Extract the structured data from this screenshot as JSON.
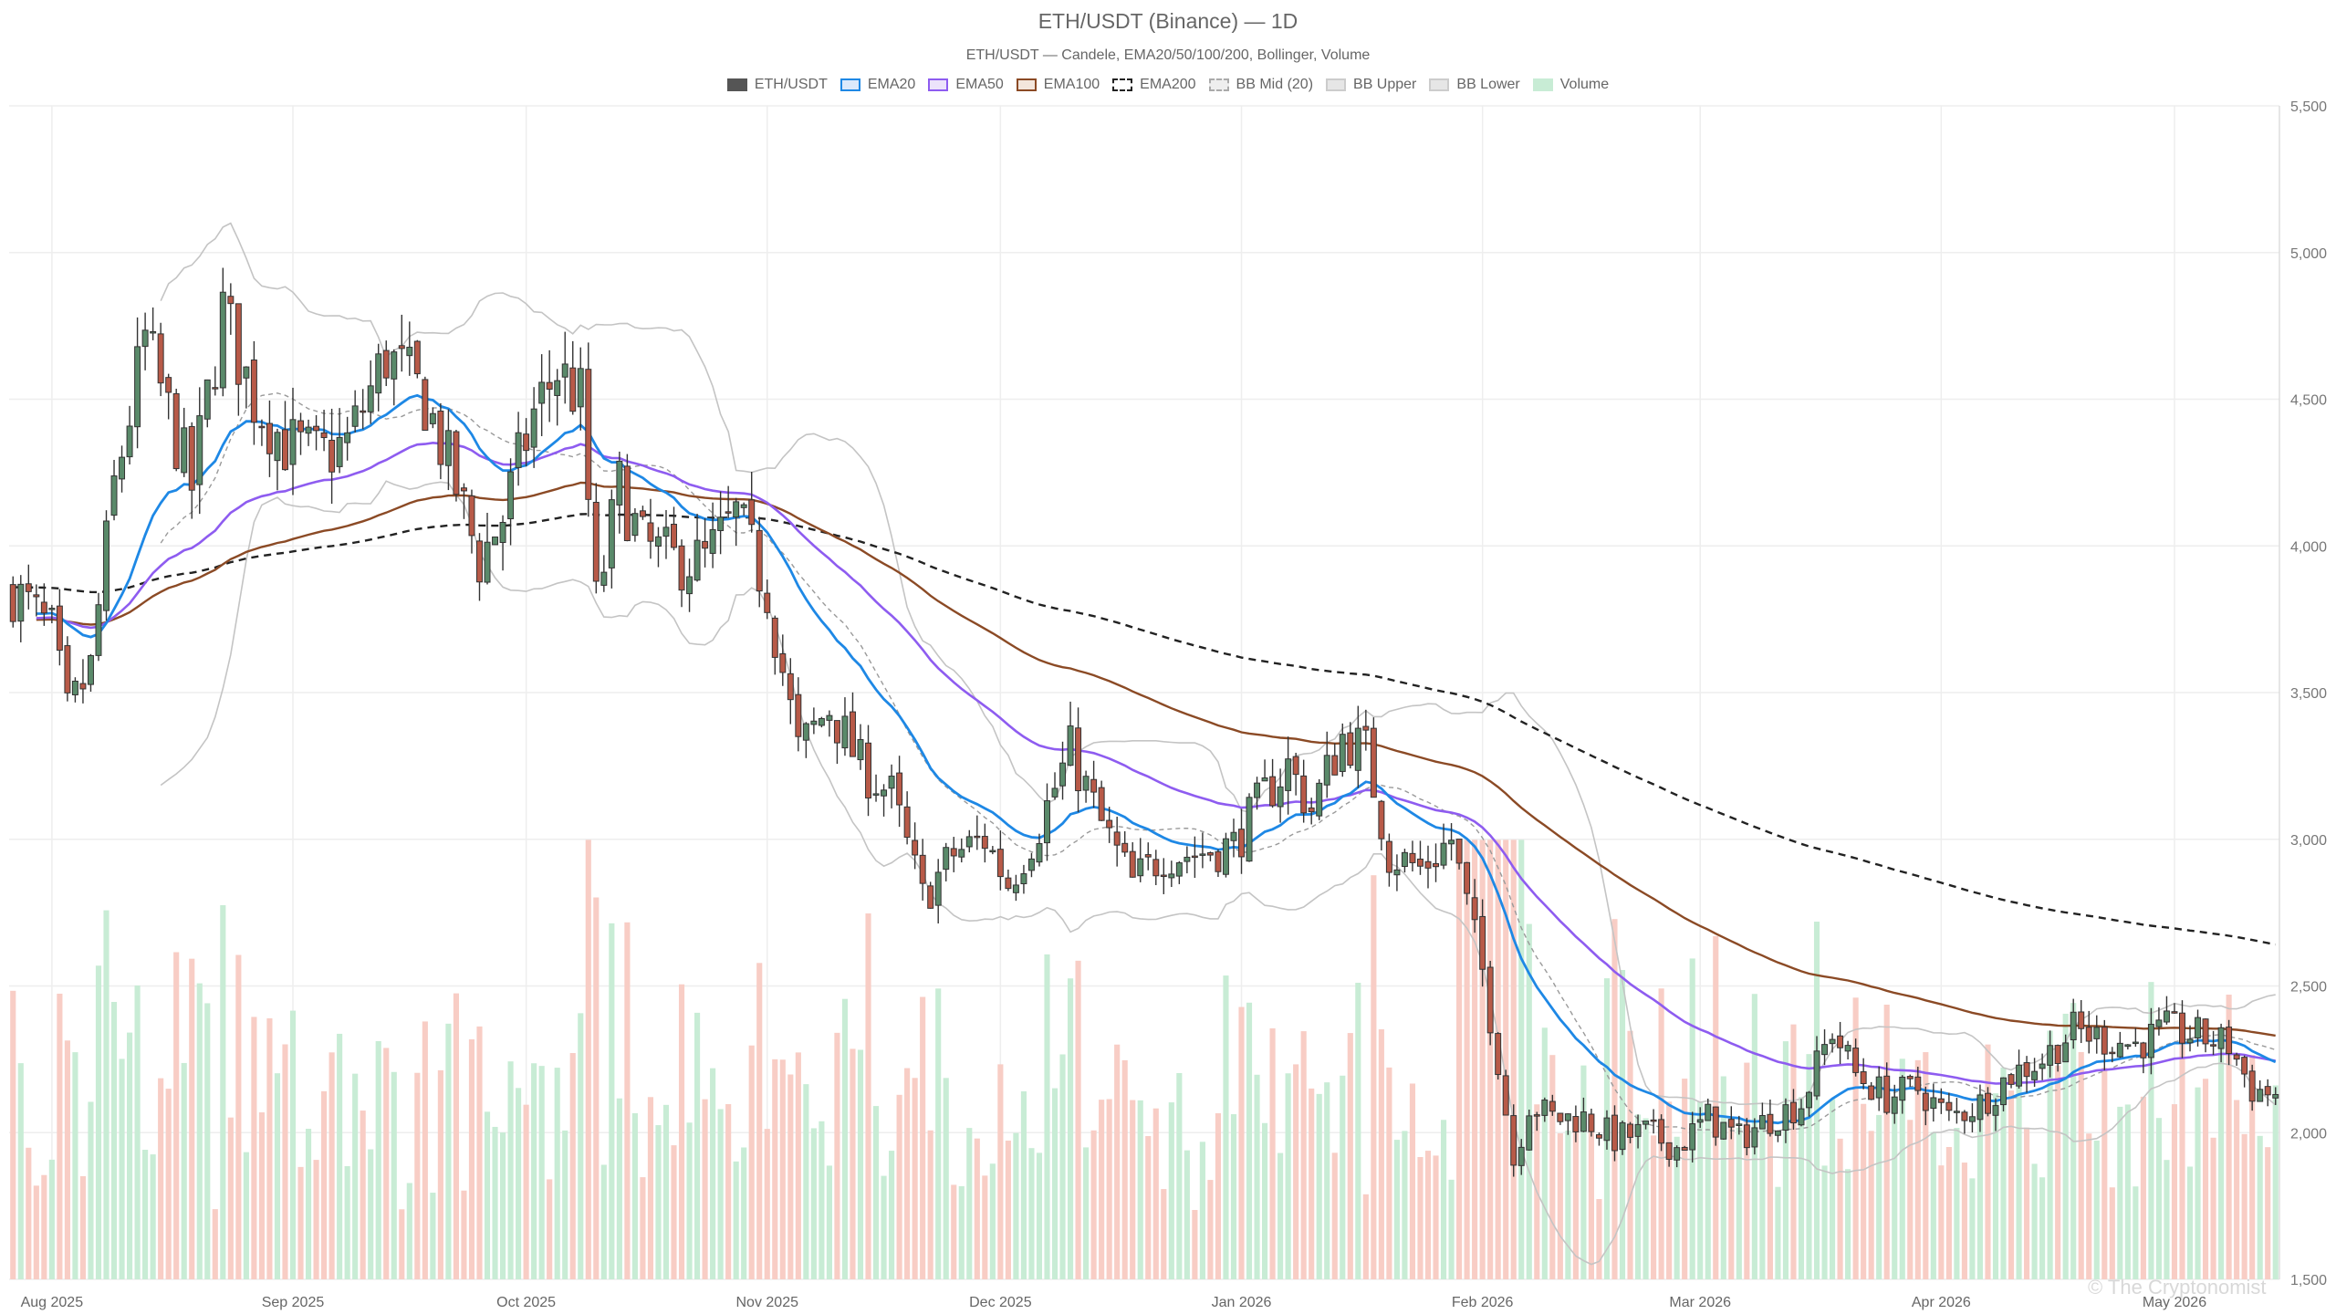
{
  "chart_data": {
    "type": "candlestick",
    "title": "ETH/USDT (Binance) — 1D",
    "subtitle": "ETH/USDT — Candele, EMA20/50/100/200, Bollinger, Volume",
    "legend": [
      {
        "name": "ETH/USDT",
        "fill": "#555555",
        "stroke": "#555555",
        "style": "solid"
      },
      {
        "name": "EMA20",
        "fill": "#dbe9fb",
        "stroke": "#1e88e5",
        "style": "solid"
      },
      {
        "name": "EMA50",
        "fill": "#ece3fb",
        "stroke": "#8e5cf0",
        "style": "solid"
      },
      {
        "name": "EMA100",
        "fill": "#f3e6dc",
        "stroke": "#8b4a25",
        "style": "solid"
      },
      {
        "name": "EMA200",
        "fill": "#ffffff",
        "stroke": "#222222",
        "style": "dashed"
      },
      {
        "name": "BB Mid (20)",
        "fill": "#eeeeee",
        "stroke": "#aaaaaa",
        "style": "dashed"
      },
      {
        "name": "BB Upper",
        "fill": "#e6e6e6",
        "stroke": "#cccccc",
        "style": "solid"
      },
      {
        "name": "BB Lower",
        "fill": "#e6e6e6",
        "stroke": "#cccccc",
        "style": "solid"
      },
      {
        "name": "Volume",
        "fill": "#c8ecd5",
        "stroke": "#c8ecd5",
        "style": "solid"
      }
    ],
    "yaxis": {
      "min": 1500,
      "max": 5500,
      "ticks": [
        "1,500",
        "2,000",
        "2,500",
        "3,000",
        "3,500",
        "4,000",
        "4,500",
        "5,000",
        "5,500"
      ],
      "position": "right"
    },
    "xaxis": {
      "ticks": [
        {
          "label": "Aug 2025",
          "date": "2025-08-01"
        },
        {
          "label": "Sep 2025",
          "date": "2025-09-01"
        },
        {
          "label": "Oct 2025",
          "date": "2025-10-01"
        },
        {
          "label": "Nov 2025",
          "date": "2025-11-01"
        },
        {
          "label": "Dec 2025",
          "date": "2025-12-01"
        },
        {
          "label": "Jan 2026",
          "date": "2026-01-01"
        },
        {
          "label": "Feb 2026",
          "date": "2026-02-01"
        },
        {
          "label": "Mar 2026",
          "date": "2026-03-01"
        },
        {
          "label": "Apr 2026",
          "date": "2026-04-01"
        },
        {
          "label": "May 2026",
          "date": "2026-05-01"
        }
      ],
      "range": [
        "2025-07-27",
        "2026-05-14"
      ]
    },
    "colors": {
      "up": "#5a8a6a",
      "down": "#b85a48",
      "up_volume": "#c8ecd5",
      "down_volume": "#f8cdc5",
      "ema20": "#1e88e5",
      "ema50": "#8e5cf0",
      "ema100": "#8b4a25",
      "ema200": "#222222",
      "bb": "#c4c4c4",
      "grid": "#eeeeee"
    },
    "grid": true,
    "legend_position": "top-center",
    "series": {
      "close_anchors": [
        [
          "2025-07-27",
          3850
        ],
        [
          "2025-08-01",
          3700
        ],
        [
          "2025-08-03",
          3420
        ],
        [
          "2025-08-06",
          3580
        ],
        [
          "2025-08-09",
          4200
        ],
        [
          "2025-08-13",
          4700
        ],
        [
          "2025-08-16",
          4450
        ],
        [
          "2025-08-19",
          4200
        ],
        [
          "2025-08-23",
          4800
        ],
        [
          "2025-08-27",
          4500
        ],
        [
          "2025-08-31",
          4350
        ],
        [
          "2025-09-04",
          4300
        ],
        [
          "2025-09-08",
          4350
        ],
        [
          "2025-09-13",
          4650
        ],
        [
          "2025-09-18",
          4500
        ],
        [
          "2025-09-22",
          4200
        ],
        [
          "2025-09-25",
          3950
        ],
        [
          "2025-09-28",
          4100
        ],
        [
          "2025-10-02",
          4450
        ],
        [
          "2025-10-05",
          4600
        ],
        [
          "2025-10-08",
          4500
        ],
        [
          "2025-10-10",
          3800
        ],
        [
          "2025-10-13",
          4200
        ],
        [
          "2025-10-16",
          4000
        ],
        [
          "2025-10-20",
          3950
        ],
        [
          "2025-10-24",
          3950
        ],
        [
          "2025-10-28",
          4100
        ],
        [
          "2025-11-01",
          3850
        ],
        [
          "2025-11-05",
          3300
        ],
        [
          "2025-11-09",
          3450
        ],
        [
          "2025-11-13",
          3250
        ],
        [
          "2025-11-17",
          3150
        ],
        [
          "2025-11-21",
          2800
        ],
        [
          "2025-11-25",
          2950
        ],
        [
          "2025-11-29",
          3000
        ],
        [
          "2025-12-02",
          2850
        ],
        [
          "2025-12-06",
          3050
        ],
        [
          "2025-12-10",
          3300
        ],
        [
          "2025-12-14",
          3050
        ],
        [
          "2025-12-18",
          2850
        ],
        [
          "2025-12-22",
          2950
        ],
        [
          "2025-12-26",
          2950
        ],
        [
          "2025-12-31",
          2980
        ],
        [
          "2026-01-04",
          3150
        ],
        [
          "2026-01-07",
          3250
        ],
        [
          "2026-01-10",
          3100
        ],
        [
          "2026-01-14",
          3350
        ],
        [
          "2026-01-17",
          3300
        ],
        [
          "2026-01-20",
          2950
        ],
        [
          "2026-01-24",
          2900
        ],
        [
          "2026-01-28",
          3000
        ],
        [
          "2026-02-01",
          2550
        ],
        [
          "2026-02-03",
          2250
        ],
        [
          "2026-02-05",
          1900
        ],
        [
          "2026-02-07",
          2100
        ],
        [
          "2026-02-10",
          2050
        ],
        [
          "2026-02-14",
          2050
        ],
        [
          "2026-02-18",
          1980
        ],
        [
          "2026-02-22",
          2000
        ],
        [
          "2026-02-26",
          1950
        ],
        [
          "2026-03-02",
          2050
        ],
        [
          "2026-03-06",
          1980
        ],
        [
          "2026-03-10",
          2050
        ],
        [
          "2026-03-14",
          2100
        ],
        [
          "2026-03-18",
          2350
        ],
        [
          "2026-03-21",
          2200
        ],
        [
          "2026-03-25",
          2120
        ],
        [
          "2026-03-29",
          2150
        ],
        [
          "2026-04-02",
          2050
        ],
        [
          "2026-04-06",
          2100
        ],
        [
          "2026-04-10",
          2200
        ],
        [
          "2026-04-14",
          2250
        ],
        [
          "2026-04-18",
          2350
        ],
        [
          "2026-04-22",
          2320
        ],
        [
          "2026-04-26",
          2300
        ],
        [
          "2026-04-30",
          2350
        ],
        [
          "2026-05-04",
          2330
        ],
        [
          "2026-05-08",
          2300
        ],
        [
          "2026-05-11",
          2150
        ],
        [
          "2026-05-14",
          2130
        ]
      ]
    }
  },
  "watermark": "© The Cryptonomist"
}
